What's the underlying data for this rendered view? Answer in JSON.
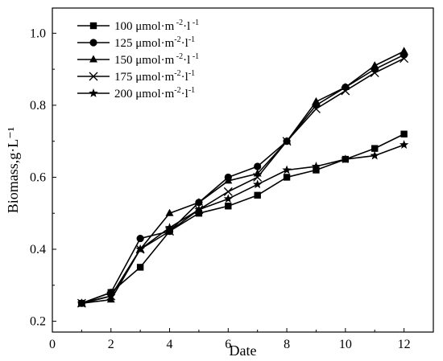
{
  "chart_data": {
    "type": "line",
    "title": "",
    "xlabel": "Date",
    "ylabel": "Biomass,g·L⁻¹",
    "xlim": [
      0,
      13
    ],
    "ylim": [
      0.17,
      1.07
    ],
    "x_ticks": [
      0,
      2,
      4,
      6,
      8,
      10,
      12
    ],
    "x_tick_labels": [
      "0",
      "2",
      "4",
      "6",
      "8",
      "10",
      "12"
    ],
    "y_ticks": [
      0.2,
      0.4,
      0.6,
      0.8,
      1.0
    ],
    "y_tick_labels": [
      "0.2",
      "0.4",
      "0.6",
      "0.8",
      "1.0"
    ],
    "x": [
      1,
      2,
      3,
      4,
      5,
      6,
      7,
      8,
      9,
      10,
      11,
      12
    ],
    "legend_position": "top-left",
    "grid": false,
    "series": [
      {
        "name": "100 μmol·m⁻²·l⁻¹",
        "legend_base": "100 μmol·m",
        "legend_sup1": " -2",
        "legend_mid": "·l",
        "legend_sup2": " -1",
        "marker": "square",
        "color": "#000000",
        "values": [
          0.25,
          0.28,
          0.35,
          0.45,
          0.5,
          0.52,
          0.55,
          0.6,
          0.62,
          0.65,
          0.68,
          0.72
        ]
      },
      {
        "name": "125 μmol·m⁻²·l⁻¹",
        "legend_base": "125 μmol·m",
        "legend_sup1": "-2",
        "legend_mid": "·l",
        "legend_sup2": "-1",
        "marker": "circle",
        "color": "#000000",
        "values": [
          0.25,
          0.28,
          0.43,
          0.45,
          0.53,
          0.6,
          0.63,
          0.7,
          0.8,
          0.85,
          0.9,
          0.94
        ]
      },
      {
        "name": "150 μmol·m⁻²·l⁻¹",
        "legend_base": "150 μmol·m",
        "legend_sup1": " -2",
        "legend_mid": "·l",
        "legend_sup2": " -1",
        "marker": "triangle",
        "color": "#000000",
        "values": [
          0.25,
          0.26,
          0.4,
          0.5,
          0.53,
          0.59,
          0.61,
          0.7,
          0.81,
          0.85,
          0.91,
          0.95
        ]
      },
      {
        "name": "175 μmol·m⁻²·l⁻¹",
        "legend_base": "175 μmol·m",
        "legend_sup1": "-2",
        "legend_mid": "·l",
        "legend_sup2": "-1",
        "marker": "x",
        "color": "#000000",
        "values": [
          0.25,
          0.27,
          0.4,
          0.45,
          0.51,
          0.56,
          0.6,
          0.7,
          0.79,
          0.84,
          0.89,
          0.93
        ]
      },
      {
        "name": "200 μmol·m⁻²·l⁻¹",
        "legend_base": "200 μmol·m",
        "legend_sup1": "-2",
        "legend_mid": "·l",
        "legend_sup2": "-1",
        "marker": "star",
        "color": "#000000",
        "values": [
          0.25,
          0.27,
          0.4,
          0.46,
          0.51,
          0.54,
          0.58,
          0.62,
          0.63,
          0.65,
          0.66,
          0.69
        ]
      }
    ]
  }
}
